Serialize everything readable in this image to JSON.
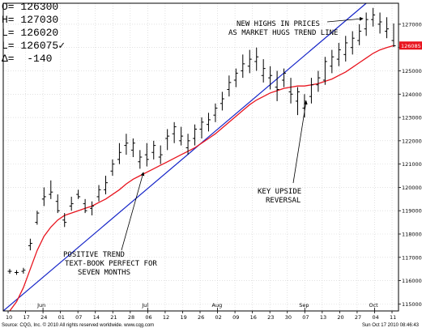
{
  "quote": {
    "open_label": "O=",
    "open": "126300",
    "high_label": "H=",
    "high": "127030",
    "low_label": "L=",
    "low": "126020",
    "last_label": "L=",
    "last": "126075",
    "last_mark": "✓",
    "change_label": "Δ=",
    "change": "-140"
  },
  "footer": {
    "left": "Source: CQG, Inc. © 2010 All rights reserved worldwide. www.cqg.com",
    "right": "Sun Oct 17 2010 08:46:43"
  },
  "chart_data": {
    "type": "ohlc",
    "y_range": [
      114700,
      127900
    ],
    "y_ticks": [
      115000,
      116000,
      117000,
      118000,
      119000,
      120000,
      121000,
      122000,
      123000,
      124000,
      125000,
      126000,
      127000
    ],
    "y_tick_labels": [
      "115000",
      "116000",
      "117000",
      "118000",
      "119000",
      "120000",
      "121000",
      "122000",
      "123000",
      "124000",
      "125000",
      "126000",
      "127000"
    ],
    "last_price_label": "126085",
    "x_day_labels": [
      "10",
      "17",
      "24",
      "01",
      "07",
      "14",
      "21",
      "28",
      "06",
      "12",
      "19",
      "26",
      "02",
      "09",
      "16",
      "23",
      "30",
      "07",
      "13",
      "20",
      "27",
      "04",
      "11"
    ],
    "x_month_labels": [
      "Jun",
      "Jul",
      "Aug",
      "Sep",
      "Oct"
    ],
    "bars": [
      {
        "o": 116400,
        "h": 116500,
        "l": 116300,
        "c": 116400
      },
      {
        "o": 116350,
        "h": 116450,
        "l": 116250,
        "c": 116350
      },
      {
        "o": 116400,
        "h": 116550,
        "l": 116300,
        "c": 116450
      },
      {
        "o": 117500,
        "h": 117800,
        "l": 117300,
        "c": 117600
      },
      {
        "o": 118500,
        "h": 119000,
        "l": 118400,
        "c": 118900
      },
      {
        "o": 119500,
        "h": 120000,
        "l": 119200,
        "c": 119600
      },
      {
        "o": 119700,
        "h": 120300,
        "l": 119500,
        "c": 119800
      },
      {
        "o": 119400,
        "h": 119700,
        "l": 118900,
        "c": 119000
      },
      {
        "o": 118600,
        "h": 118900,
        "l": 118300,
        "c": 118500
      },
      {
        "o": 119200,
        "h": 119600,
        "l": 119000,
        "c": 119300
      },
      {
        "o": 119700,
        "h": 119900,
        "l": 119500,
        "c": 119600
      },
      {
        "o": 119300,
        "h": 119500,
        "l": 118900,
        "c": 119000
      },
      {
        "o": 119100,
        "h": 119400,
        "l": 118800,
        "c": 119200
      },
      {
        "o": 119600,
        "h": 120100,
        "l": 119400,
        "c": 119900
      },
      {
        "o": 119900,
        "h": 120500,
        "l": 119700,
        "c": 120200
      },
      {
        "o": 120700,
        "h": 121200,
        "l": 120500,
        "c": 121000
      },
      {
        "o": 121200,
        "h": 121900,
        "l": 121000,
        "c": 121500
      },
      {
        "o": 121800,
        "h": 122300,
        "l": 121400,
        "c": 121900
      },
      {
        "o": 121600,
        "h": 122100,
        "l": 121300,
        "c": 121900
      },
      {
        "o": 121100,
        "h": 121600,
        "l": 120800,
        "c": 121300
      },
      {
        "o": 121400,
        "h": 121900,
        "l": 120900,
        "c": 121200
      },
      {
        "o": 121500,
        "h": 122000,
        "l": 121200,
        "c": 121800
      },
      {
        "o": 121300,
        "h": 121800,
        "l": 121000,
        "c": 121400
      },
      {
        "o": 122100,
        "h": 122500,
        "l": 121600,
        "c": 122200
      },
      {
        "o": 122300,
        "h": 122800,
        "l": 121900,
        "c": 122600
      },
      {
        "o": 122000,
        "h": 122600,
        "l": 121800,
        "c": 122200
      },
      {
        "o": 121700,
        "h": 122300,
        "l": 121400,
        "c": 122000
      },
      {
        "o": 122100,
        "h": 122700,
        "l": 121800,
        "c": 122500
      },
      {
        "o": 122500,
        "h": 123000,
        "l": 122100,
        "c": 122800
      },
      {
        "o": 122700,
        "h": 123200,
        "l": 122400,
        "c": 122900
      },
      {
        "o": 123100,
        "h": 123600,
        "l": 122800,
        "c": 123400
      },
      {
        "o": 123600,
        "h": 124100,
        "l": 123300,
        "c": 123800
      },
      {
        "o": 124200,
        "h": 124800,
        "l": 123900,
        "c": 124500
      },
      {
        "o": 124600,
        "h": 125100,
        "l": 124300,
        "c": 124900
      },
      {
        "o": 125000,
        "h": 125700,
        "l": 124700,
        "c": 125300
      },
      {
        "o": 125200,
        "h": 125900,
        "l": 124900,
        "c": 125500
      },
      {
        "o": 125400,
        "h": 126000,
        "l": 125000,
        "c": 125600
      },
      {
        "o": 124800,
        "h": 125500,
        "l": 124500,
        "c": 125100
      },
      {
        "o": 124700,
        "h": 125200,
        "l": 124200,
        "c": 124800
      },
      {
        "o": 124300,
        "h": 125000,
        "l": 123700,
        "c": 124200
      },
      {
        "o": 124600,
        "h": 125100,
        "l": 124300,
        "c": 124900
      },
      {
        "o": 124100,
        "h": 124700,
        "l": 123600,
        "c": 124000
      },
      {
        "o": 123700,
        "h": 124300,
        "l": 123100,
        "c": 124100
      },
      {
        "o": 123400,
        "h": 124000,
        "l": 123000,
        "c": 123700
      },
      {
        "o": 123900,
        "h": 124700,
        "l": 123600,
        "c": 124400
      },
      {
        "o": 124400,
        "h": 125000,
        "l": 124100,
        "c": 124700
      },
      {
        "o": 124600,
        "h": 125600,
        "l": 124400,
        "c": 125400
      },
      {
        "o": 125200,
        "h": 125900,
        "l": 124900,
        "c": 125600
      },
      {
        "o": 125500,
        "h": 126200,
        "l": 125200,
        "c": 125900
      },
      {
        "o": 125700,
        "h": 126500,
        "l": 125400,
        "c": 126200
      },
      {
        "o": 126000,
        "h": 126700,
        "l": 125700,
        "c": 126400
      },
      {
        "o": 126300,
        "h": 127000,
        "l": 126100,
        "c": 126700
      },
      {
        "o": 126800,
        "h": 127500,
        "l": 126500,
        "c": 127200
      },
      {
        "o": 127200,
        "h": 127700,
        "l": 126900,
        "c": 127400
      },
      {
        "o": 127000,
        "h": 127500,
        "l": 126600,
        "c": 127100
      },
      {
        "o": 126700,
        "h": 127300,
        "l": 126400,
        "c": 126800
      },
      {
        "o": 126300,
        "h": 127030,
        "l": 126020,
        "c": 126075
      }
    ],
    "moving_average": [
      114700,
      115100,
      115700,
      116500,
      117300,
      117900,
      118300,
      118600,
      118800,
      118900,
      119000,
      119100,
      119200,
      119350,
      119500,
      119700,
      119900,
      120150,
      120350,
      120500,
      120650,
      120800,
      120950,
      121100,
      121250,
      121400,
      121550,
      121700,
      121900,
      122100,
      122300,
      122550,
      122800,
      123050,
      123300,
      123550,
      123750,
      123900,
      124050,
      124150,
      124250,
      124300,
      124350,
      124350,
      124400,
      124450,
      124550,
      124650,
      124800,
      124950,
      125150,
      125350,
      125550,
      125750,
      125900,
      126000,
      126085
    ],
    "trend_line": {
      "start": {
        "bar": 0,
        "value": 114700
      },
      "end": {
        "bar": 52,
        "value": 127900
      }
    },
    "annotations": [
      {
        "text": [
          "NEW HIGHS IN PRICES",
          "AS MARKET HUGS TREND LINE"
        ]
      },
      {
        "text": [
          "KEY UPSIDE",
          "REVERSAL"
        ]
      },
      {
        "text": [
          "POSITIVE TREND",
          "TEXT-BOOK PERFECT FOR",
          "SEVEN MONTHS"
        ]
      }
    ],
    "colors": {
      "bars": "#000000",
      "moving_average": "#e8141e",
      "trend_line": "#1524c8",
      "grid": "#cfcfcf",
      "last_price_tag": "#e8141e"
    },
    "grid": true
  }
}
